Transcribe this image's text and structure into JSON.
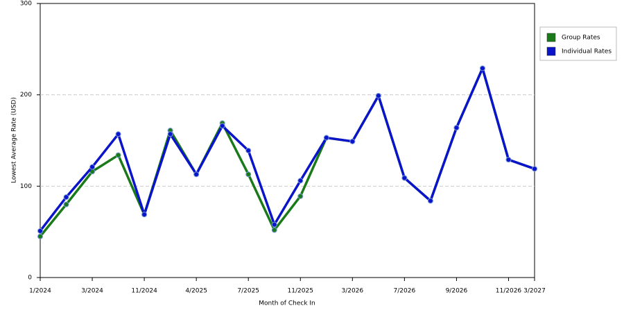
{
  "chart_data": {
    "type": "line",
    "y_label": "Lowest Average Rate (USD)",
    "x_label": "Month of Check In",
    "categories": [
      "1/2024",
      null,
      "3/2024",
      null,
      "11/2024",
      null,
      "4/2025",
      null,
      "7/2025",
      null,
      "11/2025",
      null,
      "3/2026",
      null,
      "7/2026",
      null,
      "9/2026",
      null,
      "11/2026",
      "3/2027"
    ],
    "series": [
      {
        "name": "Group Rates",
        "color": "#1a7a1a",
        "values": [
          45,
          80,
          116,
          134,
          69,
          161,
          113,
          169,
          113,
          52,
          89,
          153,
          149,
          199,
          109,
          84,
          164,
          229,
          129,
          119
        ]
      },
      {
        "name": "Individual Rates",
        "color": "#0a14c8",
        "values": [
          51,
          88,
          121,
          157,
          69,
          157,
          113,
          166,
          139,
          58,
          106,
          153,
          149,
          199,
          109,
          84,
          164,
          229,
          129,
          119
        ]
      }
    ],
    "ylim": [
      0,
      300
    ],
    "yticks": [
      0,
      100,
      200,
      300
    ],
    "grid": true,
    "legend": "right"
  }
}
